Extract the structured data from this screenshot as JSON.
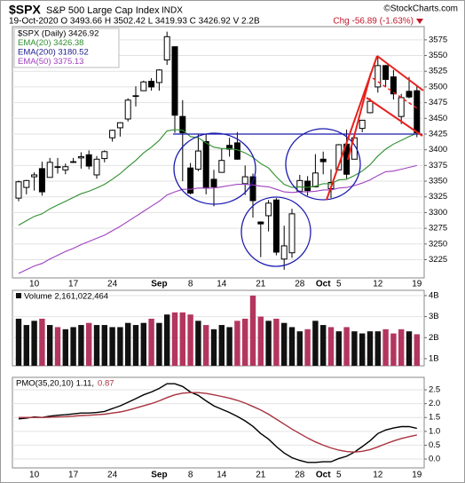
{
  "header": {
    "symbol": "$SPX",
    "name": "S&P 500 Large Cap Index",
    "exchange": "INDX",
    "brand": "©StockCharts.com",
    "quote": "19-Oct-2020 O 3493.66 H 3502.42 L 3419.93 C 3426.92 V 2.2B",
    "change": "Chg -56.89 (-1.63%)"
  },
  "chart_data": [
    {
      "type": "candlestick",
      "categories": [
        null,
        null,
        "10",
        null,
        null,
        null,
        null,
        "17",
        null,
        null,
        null,
        null,
        "24",
        null,
        null,
        null,
        null,
        null,
        "Sep",
        null,
        null,
        null,
        "8",
        null,
        null,
        null,
        "14",
        null,
        null,
        null,
        null,
        "21",
        null,
        null,
        null,
        null,
        "28",
        null,
        null,
        "Oct",
        null,
        "5",
        null,
        null,
        null,
        null,
        "12",
        null,
        null,
        null,
        null,
        "19"
      ],
      "series": [
        {
          "name": "$SPX (Daily) 3426.92",
          "color": "#000000",
          "open": [
            3323,
            3340,
            3357,
            3370,
            3356,
            3373,
            3368,
            3380,
            3387,
            3392,
            3360,
            3386,
            3419,
            3435,
            3449,
            3486,
            3494,
            3509,
            3507,
            3543,
            3564,
            3453,
            3371,
            3369,
            3413,
            3353,
            3364,
            3407,
            3411,
            3346,
            3357,
            3285,
            3295,
            3320,
            3226,
            3236,
            3334,
            3350,
            3341,
            3385,
            3338,
            3368,
            3409,
            3385,
            3434,
            3459,
            3500,
            3534,
            3516,
            3453,
            3493,
            3494
          ],
          "high": [
            3351,
            3352,
            3364,
            3381,
            3387,
            3387,
            3378,
            3387,
            3396,
            3399,
            3390,
            3399,
            3432,
            3444,
            3482,
            3501,
            3510,
            3514,
            3528,
            3588,
            3564,
            3479,
            3379,
            3425,
            3425,
            3368,
            3402,
            3419,
            3428,
            3375,
            3362,
            3286,
            3320,
            3323,
            3279,
            3306,
            3360,
            3358,
            3393,
            3397,
            3369,
            3409,
            3432,
            3426,
            3447,
            3482,
            3550,
            3535,
            3527,
            3489,
            3516,
            3502
          ],
          "low": [
            3318,
            3329,
            3335,
            3327,
            3356,
            3362,
            3361,
            3379,
            3370,
            3369,
            3354,
            3380,
            3413,
            3421,
            3445,
            3469,
            3495,
            3494,
            3494,
            3535,
            3427,
            3350,
            3329,
            3366,
            3329,
            3310,
            3364,
            3389,
            3384,
            3328,
            3292,
            3229,
            3270,
            3232,
            3209,
            3228,
            3332,
            3327,
            3340,
            3361,
            3323,
            3367,
            3354,
            3385,
            3428,
            3458,
            3491,
            3501,
            3480,
            3441,
            3482,
            3420
          ],
          "close": [
            3349,
            3351,
            3360,
            3333,
            3380,
            3373,
            3373,
            3381,
            3389,
            3374,
            3385,
            3397,
            3431,
            3443,
            3479,
            3485,
            3508,
            3500,
            3527,
            3580,
            3455,
            3427,
            3331,
            3398,
            3339,
            3341,
            3383,
            3401,
            3385,
            3357,
            3319,
            3282,
            3315,
            3237,
            3247,
            3298,
            3351,
            3335,
            3363,
            3381,
            3348,
            3408,
            3361,
            3419,
            3447,
            3477,
            3534,
            3512,
            3489,
            3483,
            3484,
            3427
          ]
        },
        {
          "name": "EMA(20) 3426.38",
          "color": "#2f8f2f",
          "values": [
            3280,
            3287,
            3294,
            3298,
            3306,
            3312,
            3318,
            3324,
            3330,
            3334,
            3339,
            3345,
            3353,
            3362,
            3373,
            3383,
            3395,
            3404,
            3415,
            3430,
            3432,
            3431,
            3421,
            3419,
            3411,
            3404,
            3402,
            3402,
            3400,
            3395,
            3388,
            3378,
            3371,
            3357,
            3345,
            3340,
            3341,
            3340,
            3342,
            3346,
            3346,
            3352,
            3353,
            3359,
            3366,
            3376,
            3390,
            3401,
            3409,
            3415,
            3421,
            3426
          ]
        },
        {
          "name": "EMA(200) 3180.52",
          "color": "#1c1c8f"
        },
        {
          "name": "EMA(50) 3375.13",
          "color": "#a040c0",
          "values": [
            3203,
            3209,
            3215,
            3219,
            3226,
            3232,
            3238,
            3243,
            3249,
            3254,
            3259,
            3264,
            3271,
            3278,
            3286,
            3294,
            3302,
            3310,
            3318,
            3328,
            3333,
            3337,
            3337,
            3339,
            3339,
            3339,
            3341,
            3343,
            3345,
            3345,
            3344,
            3342,
            3341,
            3337,
            3333,
            3332,
            3333,
            3333,
            3334,
            3336,
            3336,
            3339,
            3340,
            3343,
            3347,
            3352,
            3359,
            3365,
            3366,
            3369,
            3372,
            3375
          ]
        }
      ],
      "ylim": [
        3196,
        3596
      ],
      "yticks": [
        3225,
        3250,
        3275,
        3300,
        3325,
        3350,
        3375,
        3400,
        3425,
        3450,
        3475,
        3500,
        3525,
        3550,
        3575
      ],
      "grid": true
    },
    {
      "type": "bar",
      "title": "Volume 2,161,022,464",
      "up_color": "#111111",
      "down_color": "#b3365f",
      "values": [
        2900000000,
        2600000000,
        2800000000,
        2900000000,
        2600000000,
        2500000000,
        2400000000,
        2500000000,
        2600000000,
        2700000000,
        2600000000,
        2600000000,
        2500000000,
        2500000000,
        2700000000,
        2600000000,
        2700000000,
        2900000000,
        2700000000,
        3100000000,
        3200000000,
        3200000000,
        3100000000,
        2800000000,
        2600000000,
        2400000000,
        2600000000,
        2500000000,
        2800000000,
        2900000000,
        4000000000,
        3000000000,
        2800000000,
        2900000000,
        2700000000,
        2500000000,
        2300000000,
        2400000000,
        2800000000,
        2600000000,
        2500000000,
        2300000000,
        2500000000,
        2300000000,
        2200000000,
        2300000000,
        2300000000,
        2400000000,
        2200000000,
        2400000000,
        2300000000,
        2161022464
      ],
      "ylim": [
        660000000,
        4250000000
      ],
      "yticks": [
        {
          "value": 1000000000,
          "label": "1B"
        },
        {
          "value": 2000000000,
          "label": "2B"
        },
        {
          "value": 3000000000,
          "label": "3B"
        },
        {
          "value": 4000000000,
          "label": "4B"
        }
      ],
      "grid": true
    },
    {
      "type": "line",
      "categories": [
        null,
        null,
        "10",
        null,
        null,
        null,
        null,
        "17",
        null,
        null,
        null,
        null,
        "24",
        null,
        null,
        null,
        null,
        null,
        "Sep",
        null,
        null,
        null,
        "8",
        null,
        null,
        null,
        "14",
        null,
        null,
        null,
        null,
        "21",
        null,
        null,
        null,
        null,
        "28",
        null,
        null,
        "Oct",
        null,
        "5",
        null,
        null,
        null,
        null,
        "12",
        null,
        null,
        null,
        null,
        "19"
      ],
      "series": [
        {
          "name": "PMO(35,20,10) 1.11,",
          "color": "#000000",
          "values": [
            1.45,
            1.48,
            1.52,
            1.5,
            1.55,
            1.58,
            1.6,
            1.63,
            1.66,
            1.66,
            1.68,
            1.72,
            1.82,
            1.92,
            2.05,
            2.18,
            2.32,
            2.42,
            2.55,
            2.72,
            2.72,
            2.62,
            2.42,
            2.3,
            2.1,
            1.92,
            1.8,
            1.68,
            1.54,
            1.38,
            1.18,
            0.92,
            0.72,
            0.45,
            0.22,
            0.05,
            -0.05,
            -0.12,
            -0.12,
            -0.1,
            -0.1,
            0.02,
            0.1,
            0.25,
            0.45,
            0.66,
            0.92,
            1.05,
            1.12,
            1.17,
            1.17,
            1.11
          ]
        },
        {
          "name": "0.87",
          "color": "#a8323e",
          "values": [
            1.5,
            1.5,
            1.5,
            1.5,
            1.51,
            1.52,
            1.53,
            1.55,
            1.57,
            1.58,
            1.6,
            1.62,
            1.66,
            1.7,
            1.76,
            1.84,
            1.92,
            2.0,
            2.1,
            2.22,
            2.32,
            2.38,
            2.4,
            2.4,
            2.37,
            2.32,
            2.26,
            2.2,
            2.12,
            2.02,
            1.9,
            1.77,
            1.62,
            1.44,
            1.26,
            1.08,
            0.92,
            0.76,
            0.62,
            0.5,
            0.4,
            0.32,
            0.27,
            0.25,
            0.28,
            0.34,
            0.44,
            0.55,
            0.65,
            0.74,
            0.81,
            0.87
          ]
        }
      ],
      "ylim": [
        -0.32,
        2.95
      ],
      "yticks": [
        {
          "value": 0,
          "label": "0.0"
        },
        0.5,
        {
          "value": 1,
          "label": "1.0"
        },
        1.5,
        {
          "value": 2,
          "label": "2.0"
        },
        2.5
      ],
      "grid": true
    }
  ]
}
